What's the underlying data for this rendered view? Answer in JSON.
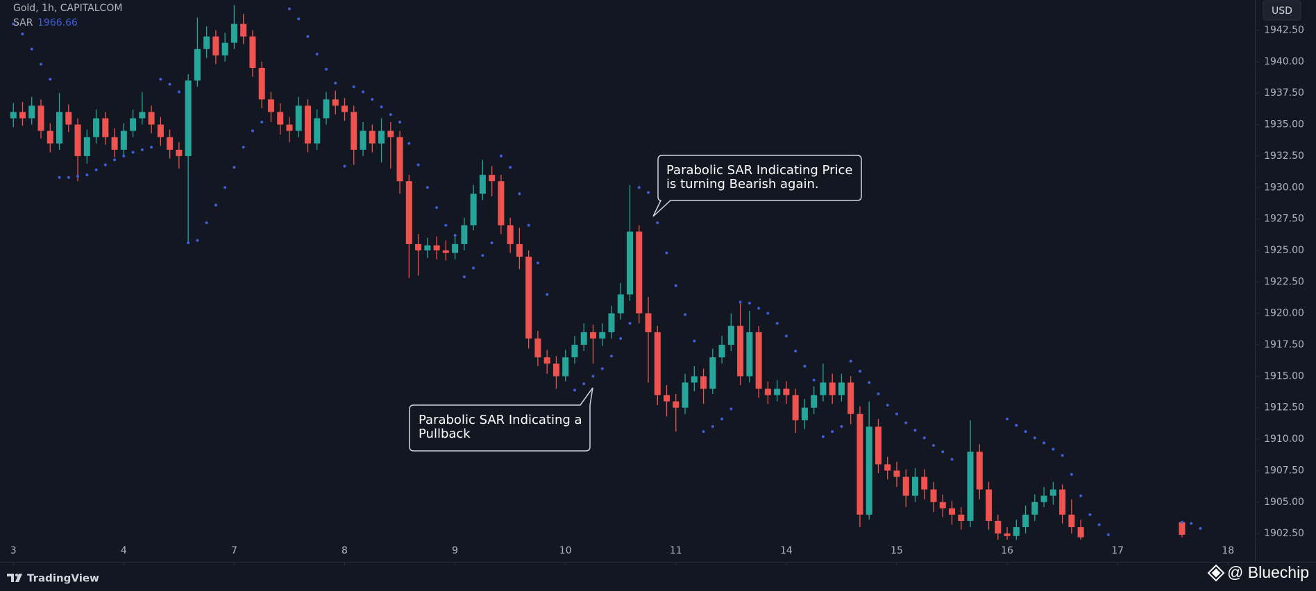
{
  "chart_data": {
    "type": "candlestick",
    "title": "Gold, 1h, CAPITALCOM",
    "currency": "USD",
    "up_color": "#26a69a",
    "down_color": "#ef5350",
    "grid": false,
    "xlim": [
      -1,
      135
    ],
    "xticks": [
      {
        "value": 0,
        "label": "3"
      },
      {
        "value": 12,
        "label": "4"
      },
      {
        "value": 24,
        "label": "7"
      },
      {
        "value": 36,
        "label": "8"
      },
      {
        "value": 48,
        "label": "9"
      },
      {
        "value": 60,
        "label": "10"
      },
      {
        "value": 72,
        "label": "11"
      },
      {
        "value": 84,
        "label": "14"
      },
      {
        "value": 96,
        "label": "15"
      },
      {
        "value": 108,
        "label": "16"
      },
      {
        "value": 120,
        "label": "17"
      },
      {
        "value": 132,
        "label": "18"
      }
    ],
    "ylim": [
      1901.9,
      1944.9
    ],
    "yticks": [
      {
        "value": 1902.5,
        "label": "1902.50"
      },
      {
        "value": 1905,
        "label": "1905.00"
      },
      {
        "value": 1907.5,
        "label": "1907.50"
      },
      {
        "value": 1910,
        "label": "1910.00"
      },
      {
        "value": 1912.5,
        "label": "1912.50"
      },
      {
        "value": 1915,
        "label": "1915.00"
      },
      {
        "value": 1917.5,
        "label": "1917.50"
      },
      {
        "value": 1920,
        "label": "1920.00"
      },
      {
        "value": 1922.5,
        "label": "1922.50"
      },
      {
        "value": 1925,
        "label": "1925.00"
      },
      {
        "value": 1927.5,
        "label": "1927.50"
      },
      {
        "value": 1930,
        "label": "1930.00"
      },
      {
        "value": 1932.5,
        "label": "1932.50"
      },
      {
        "value": 1935,
        "label": "1935.00"
      },
      {
        "value": 1937.5,
        "label": "1937.50"
      },
      {
        "value": 1940,
        "label": "1940.00"
      },
      {
        "value": 1942.5,
        "label": "1942.50"
      }
    ],
    "open": [
      1935.5,
      1936,
      1935.5,
      1936.5,
      1934.5,
      1933.5,
      1936,
      1935,
      1932.5,
      1934,
      1935.5,
      1934,
      1933,
      1934.5,
      1935.5,
      1936,
      1935,
      1934,
      1933,
      1932.5,
      1938.5,
      1941,
      1942,
      1940.5,
      1941.5,
      1943,
      1942,
      1939.5,
      1937,
      1936,
      1935,
      1934.5,
      1936.5,
      1933.5,
      1935.5,
      1937,
      1936.5,
      1936,
      1933,
      1934.5,
      1933.5,
      1934.5,
      1934,
      1930.5,
      1925.5,
      1925,
      1925.4,
      1925,
      1924.8,
      1925.5,
      1927,
      1929.5,
      1931,
      1930.5,
      1927,
      1925.5,
      1924.5,
      1918,
      1916.5,
      1916,
      1915,
      1916.5,
      1917.5,
      1918.5,
      1918,
      1918.5,
      1920,
      1921.5,
      1926.5,
      1920,
      1918.5,
      1913.5,
      1913,
      1912.5,
      1914.5,
      1915,
      1914,
      1916.5,
      1917.5,
      1919,
      1915,
      1918.5,
      1914,
      1913.5,
      1914,
      1913.5,
      1911.5,
      1912.5,
      1913.5,
      1914.5,
      1913.5,
      1914.5,
      1912,
      1904,
      1911,
      1908,
      1907.5,
      1907,
      1905.5,
      1907,
      1906,
      1905,
      1904.5,
      1904,
      1903.5,
      1909,
      1906,
      1903.5,
      1902.5,
      1902.3,
      1903,
      1904,
      1905,
      1905.5,
      1906,
      1904,
      1903,
      null,
      null,
      null,
      null,
      null,
      null,
      null,
      null,
      null,
      null,
      1903.4,
      null,
      null
    ],
    "high": [
      1936.7,
      1936.8,
      1937.2,
      1937,
      1935.1,
      1937.5,
      1936.6,
      1935.5,
      1934.6,
      1936.2,
      1936,
      1934.7,
      1935.1,
      1936.2,
      1937.6,
      1936.5,
      1935.6,
      1934.6,
      1933.6,
      1939,
      1943.5,
      1942.8,
      1942.5,
      1942.3,
      1944.5,
      1943.8,
      1942.5,
      1940,
      1937.6,
      1936.7,
      1935.6,
      1937.2,
      1937,
      1936.2,
      1937.6,
      1937.7,
      1937.1,
      1936.5,
      1935.2,
      1935,
      1935.5,
      1935.2,
      1934.5,
      1931,
      1926.3,
      1926,
      1926.1,
      1925.8,
      1926.2,
      1927.6,
      1930.2,
      1932.2,
      1931.7,
      1931,
      1927.6,
      1926.8,
      1925,
      1918.6,
      1917.1,
      1916.6,
      1917.1,
      1918.2,
      1919.2,
      1919.1,
      1919.2,
      1920.6,
      1922.4,
      1930.2,
      1927,
      1921.3,
      1919,
      1914.3,
      1913.6,
      1915.2,
      1915.8,
      1915.6,
      1917.2,
      1918.2,
      1920,
      1921,
      1920.2,
      1919,
      1914.6,
      1914.7,
      1914.6,
      1914,
      1913.2,
      1914.2,
      1916,
      1915.2,
      1915.2,
      1915,
      1912.6,
      1913,
      1911.6,
      1908.6,
      1908.2,
      1907.6,
      1907.7,
      1907.6,
      1906.6,
      1905.6,
      1905.1,
      1904.6,
      1911.5,
      1909.6,
      1906.6,
      1904,
      1903,
      1903.6,
      1904.7,
      1905.6,
      1906.2,
      1906.6,
      1906.4,
      1905.2,
      1903.6,
      null,
      null,
      null,
      null,
      null,
      null,
      null,
      null,
      null,
      null,
      1903.5,
      null,
      null
    ],
    "low": [
      1934.8,
      1934.9,
      1935,
      1933.9,
      1932.8,
      1933,
      1934.4,
      1930.5,
      1931.9,
      1933.5,
      1933.4,
      1932.4,
      1932.6,
      1934,
      1935,
      1934.3,
      1933.3,
      1932.3,
      1931.5,
      1925.6,
      1938,
      1940.3,
      1939.8,
      1940,
      1941,
      1941.4,
      1938.8,
      1936.3,
      1935.2,
      1934.2,
      1933.6,
      1934,
      1932.8,
      1933,
      1935,
      1935.8,
      1935.3,
      1931.8,
      1932.5,
      1932.8,
      1932,
      1931.5,
      1929.5,
      1922.8,
      1923,
      1924.4,
      1924.3,
      1924.2,
      1924.3,
      1925,
      1926.6,
      1929,
      1929.3,
      1926.3,
      1924.8,
      1923.5,
      1917.2,
      1915.8,
      1915.2,
      1914,
      1914.6,
      1916,
      1917,
      1916,
      1917.4,
      1918,
      1919.5,
      1921,
      1919.2,
      1914.5,
      1912.7,
      1911.8,
      1910.6,
      1912,
      1913.8,
      1912.8,
      1913.6,
      1916,
      1917,
      1914.3,
      1914.5,
      1913.3,
      1912.8,
      1913,
      1912.8,
      1910.5,
      1910.8,
      1912,
      1913,
      1912.8,
      1913,
      1911.2,
      1903,
      1903.6,
      1907.3,
      1906.8,
      1906.2,
      1904.6,
      1905,
      1905.2,
      1904.2,
      1903.8,
      1903.2,
      1902.8,
      1903,
      1905.2,
      1902.8,
      1902,
      1902,
      1902,
      1902.5,
      1903.5,
      1904.6,
      1904.8,
      1903.3,
      1902.5,
      1902,
      null,
      null,
      null,
      null,
      null,
      null,
      null,
      null,
      null,
      null,
      1902.2,
      null,
      null
    ],
    "close": [
      1936,
      1935.5,
      1936.5,
      1934.5,
      1933.5,
      1936,
      1935,
      1932.5,
      1934,
      1935.5,
      1934,
      1933,
      1934.5,
      1935.5,
      1936,
      1935,
      1934,
      1933,
      1932.5,
      1938.5,
      1941,
      1942,
      1940.5,
      1941.5,
      1943,
      1942,
      1939.5,
      1937,
      1936,
      1935,
      1934.5,
      1936.5,
      1933.5,
      1935.5,
      1937,
      1936.5,
      1936,
      1933,
      1934.5,
      1933.5,
      1934.5,
      1934,
      1930.5,
      1925.5,
      1925,
      1925.4,
      1925,
      1924.8,
      1925.5,
      1927,
      1929.5,
      1931,
      1930.5,
      1927,
      1925.5,
      1924.5,
      1918,
      1916.5,
      1916,
      1915,
      1916.5,
      1917.5,
      1918.5,
      1918,
      1918.5,
      1920,
      1921.5,
      1926.5,
      1920,
      1918.5,
      1913.5,
      1913,
      1912.5,
      1914.5,
      1915,
      1914,
      1916.5,
      1917.5,
      1919,
      1915,
      1918.5,
      1914,
      1913.5,
      1914,
      1913.5,
      1911.5,
      1912.5,
      1913.5,
      1914.5,
      1913.5,
      1914.5,
      1912,
      1904,
      1911,
      1908,
      1907.5,
      1907,
      1905.5,
      1907,
      1906,
      1905,
      1904.5,
      1904,
      1903.5,
      1909,
      1906,
      1903.5,
      1902.5,
      1902.3,
      1903,
      1904,
      1905,
      1905.5,
      1906,
      1904,
      1903,
      1902.2,
      null,
      null,
      null,
      null,
      null,
      null,
      null,
      null,
      null,
      null,
      1902.4,
      null,
      null
    ],
    "series": [
      {
        "name": "SAR",
        "color": "#3d5fd9",
        "legend_value": 1966.66,
        "values": [
          1943,
          1942.2,
          1941,
          1939.8,
          1938.6,
          1930.8,
          1930.8,
          1930.9,
          1931,
          1931.4,
          1931.8,
          1932.2,
          1932.5,
          1932.8,
          1933,
          1933.2,
          1938.6,
          1938.2,
          1937.6,
          1925.6,
          1925.8,
          1927.2,
          1928.6,
          1930,
          1931.6,
          1933.2,
          1934.5,
          1935.2,
          null,
          null,
          1944.2,
          1943.4,
          1942,
          1940.6,
          1939.4,
          1938.3,
          1931.7,
          1938,
          1937.6,
          1937,
          1936.4,
          1935.8,
          1935.2,
          1933.5,
          1931.8,
          1930,
          1928.4,
          1927,
          1926.2,
          1922.9,
          1923.6,
          1924.6,
          1925.6,
          1932.5,
          1931.6,
          1929.5,
          1927,
          1924,
          1921.5,
          null,
          null,
          1913.9,
          1914.4,
          1915,
          1915.6,
          1916.6,
          1918,
          1919.2,
          1930,
          1929.6,
          1927.2,
          1924.8,
          1922.2,
          1919.9,
          1917.8,
          1910.6,
          1911,
          1911.6,
          1912.4,
          1920.9,
          1920.8,
          1920.4,
          1920,
          1919.2,
          1918.2,
          1917,
          1915.8,
          1914.7,
          1910.2,
          1910.6,
          1911,
          1916.2,
          1915.4,
          1914.5,
          1913.6,
          1912.7,
          1912,
          1911.3,
          1910.7,
          1910.1,
          1909.5,
          1909,
          1908.4,
          null,
          null,
          null,
          null,
          null,
          1911.6,
          1911.1,
          1910.6,
          1910.1,
          1909.7,
          1909.2,
          1908.7,
          1907.2,
          1905.5,
          1904,
          1903.2,
          1902.4,
          null,
          null,
          null,
          null,
          null,
          null,
          null,
          1903.4,
          1903.3,
          1902.9
        ]
      }
    ],
    "annotations": [
      {
        "lines": [
          "Parabolic SAR Indicating Price",
          "is turning Bearish again."
        ]
      },
      {
        "lines": [
          "Parabolic SAR Indicating a",
          "Pullback"
        ]
      }
    ]
  },
  "footer": {
    "brand": "TradingView",
    "credit": "@ Bluechip"
  }
}
